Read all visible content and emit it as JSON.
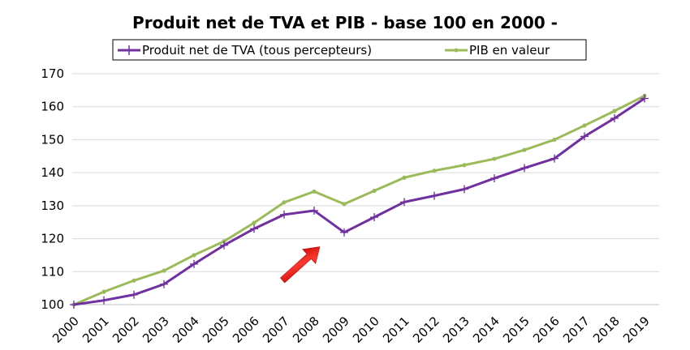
{
  "chart_data": {
    "type": "line",
    "title": "Produit net de TVA et PIB - base 100 en 2000 -",
    "categories": [
      "2000",
      "2001",
      "2002",
      "2003",
      "2004",
      "2005",
      "2006",
      "2007",
      "2008",
      "2009",
      "2010",
      "2011",
      "2012",
      "2013",
      "2014",
      "2015",
      "2016",
      "2017",
      "2018",
      "2019"
    ],
    "ylim": [
      100,
      170
    ],
    "yticks": [
      "100",
      "110",
      "120",
      "130",
      "140",
      "150",
      "160",
      "170"
    ],
    "grid": "horizontal",
    "legend_position": "top",
    "series": [
      {
        "name": "Produit net de TVA (tous percepteurs)",
        "color": "#7030a0",
        "marker": "plus",
        "values": [
          100.0,
          101.3,
          103.0,
          106.2,
          112.3,
          118.0,
          123.0,
          127.3,
          128.5,
          121.9,
          126.5,
          131.1,
          133.0,
          135.0,
          138.3,
          141.4,
          144.3,
          151.0,
          156.5,
          162.5
        ]
      },
      {
        "name": "PIB en valeur",
        "color": "#9bbb59",
        "marker": "dot",
        "values": [
          100.0,
          103.9,
          107.3,
          110.3,
          115.0,
          119.2,
          124.8,
          131.0,
          134.3,
          130.5,
          134.5,
          138.5,
          140.6,
          142.3,
          144.2,
          146.9,
          150.0,
          154.3,
          158.7,
          163.3
        ]
      }
    ],
    "annotations": [
      {
        "type": "arrow",
        "color": "#e8151b",
        "points_to": {
          "x": "2008",
          "y": 124
        }
      }
    ]
  }
}
